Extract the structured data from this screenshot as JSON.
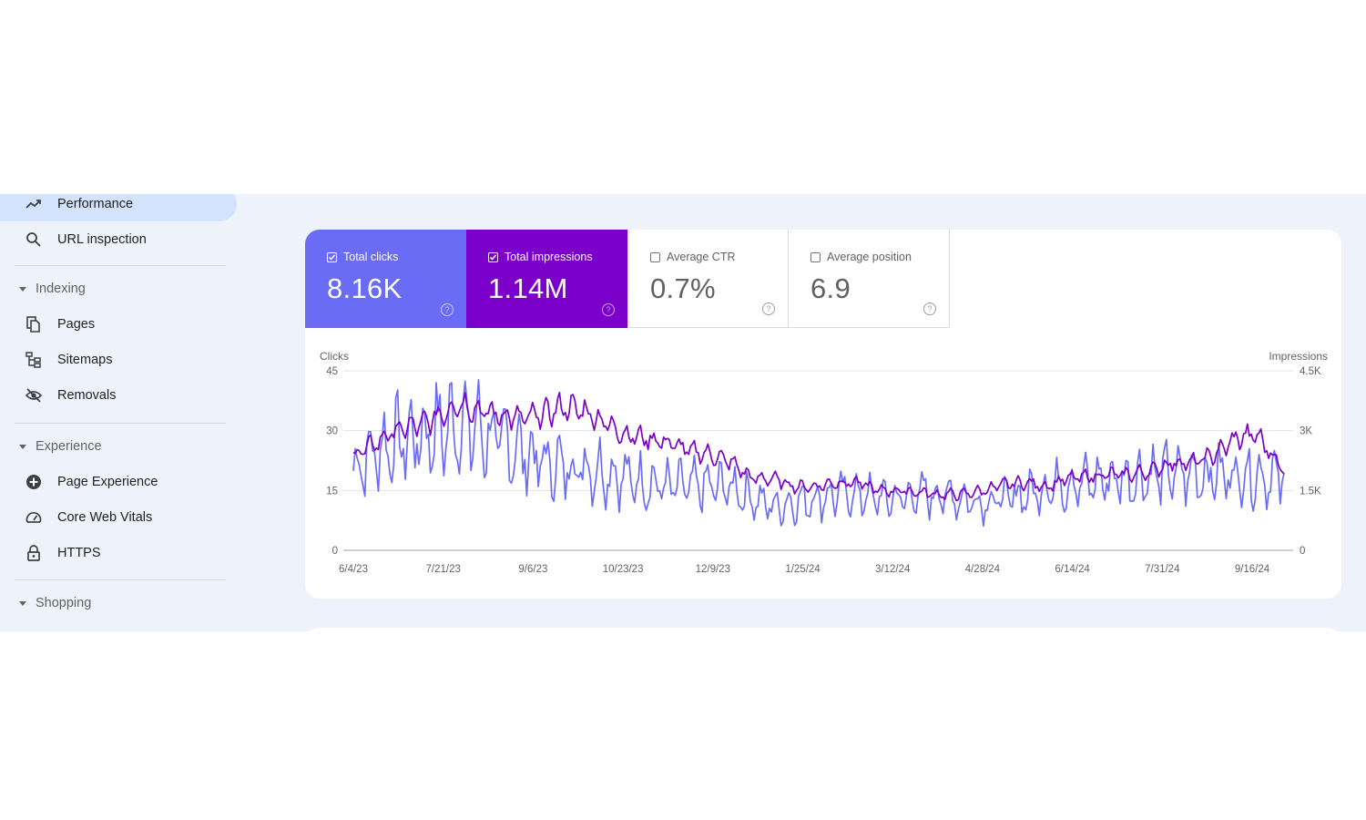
{
  "sidebar": {
    "items": [
      {
        "label": "Performance",
        "icon": "trending-up-icon",
        "active": true
      },
      {
        "label": "URL inspection",
        "icon": "search-icon"
      }
    ],
    "sections": [
      {
        "label": "Indexing",
        "items": [
          {
            "label": "Pages",
            "icon": "pages-icon"
          },
          {
            "label": "Sitemaps",
            "icon": "sitemap-icon"
          },
          {
            "label": "Removals",
            "icon": "eye-off-icon"
          }
        ]
      },
      {
        "label": "Experience",
        "items": [
          {
            "label": "Page Experience",
            "icon": "plus-circle-icon"
          },
          {
            "label": "Core Web Vitals",
            "icon": "gauge-icon"
          },
          {
            "label": "HTTPS",
            "icon": "lock-icon"
          }
        ]
      },
      {
        "label": "Shopping",
        "items": []
      }
    ]
  },
  "metrics": [
    {
      "label": "Total clicks",
      "value": "8.16K",
      "checked": true,
      "color": "#6a6cf6"
    },
    {
      "label": "Total impressions",
      "value": "1.14M",
      "checked": true,
      "color": "#7b00c9"
    },
    {
      "label": "Average CTR",
      "value": "0.7%",
      "checked": false
    },
    {
      "label": "Average position",
      "value": "6.9",
      "checked": false
    }
  ],
  "chart_data": {
    "type": "line",
    "y_left_label": "Clicks",
    "y_right_label": "Impressions",
    "y_left_ticks": [
      "45",
      "30",
      "15",
      "0"
    ],
    "y_right_ticks": [
      "4.5K",
      "3K",
      "1.5K",
      "0"
    ],
    "y_left_range": [
      0,
      45
    ],
    "y_right_range": [
      0,
      4500
    ],
    "x_ticks": [
      "6/4/23",
      "7/21/23",
      "9/6/23",
      "10/23/23",
      "12/9/23",
      "1/25/24",
      "3/12/24",
      "4/28/24",
      "6/14/24",
      "7/31/24",
      "9/16/24"
    ],
    "x_start": "2023-06-04",
    "x_end": "2024-09-29",
    "grid": true,
    "series": [
      {
        "name": "Total clicks",
        "axis": "left",
        "color": "#6a6cf6",
        "anchors": [
          [
            0,
            20
          ],
          [
            8,
            24
          ],
          [
            20,
            27
          ],
          [
            35,
            29
          ],
          [
            50,
            32
          ],
          [
            60,
            30
          ],
          [
            70,
            27
          ],
          [
            80,
            25
          ],
          [
            90,
            22
          ],
          [
            100,
            21
          ],
          [
            110,
            21
          ],
          [
            120,
            20
          ],
          [
            130,
            18
          ],
          [
            140,
            17
          ],
          [
            150,
            16
          ],
          [
            160,
            16
          ],
          [
            170,
            16
          ],
          [
            180,
            16
          ],
          [
            190,
            13
          ],
          [
            200,
            11
          ],
          [
            210,
            12
          ],
          [
            220,
            13
          ],
          [
            230,
            14
          ],
          [
            240,
            14
          ],
          [
            250,
            13
          ],
          [
            260,
            13
          ],
          [
            270,
            14
          ],
          [
            280,
            14
          ],
          [
            290,
            13
          ],
          [
            300,
            12
          ],
          [
            310,
            13
          ],
          [
            320,
            14
          ],
          [
            330,
            16
          ],
          [
            340,
            17
          ],
          [
            350,
            17
          ],
          [
            360,
            18
          ],
          [
            370,
            18
          ],
          [
            380,
            19
          ],
          [
            390,
            19
          ],
          [
            400,
            19
          ],
          [
            410,
            19
          ],
          [
            420,
            19
          ],
          [
            430,
            19
          ],
          [
            443,
            18
          ]
        ]
      },
      {
        "name": "Total impressions",
        "axis": "right",
        "color": "#7b00c9",
        "anchors": [
          [
            0,
            2400
          ],
          [
            8,
            2600
          ],
          [
            20,
            3000
          ],
          [
            35,
            3200
          ],
          [
            50,
            3700
          ],
          [
            60,
            3500
          ],
          [
            70,
            3400
          ],
          [
            80,
            3300
          ],
          [
            90,
            3400
          ],
          [
            100,
            3600
          ],
          [
            110,
            3500
          ],
          [
            120,
            3200
          ],
          [
            130,
            2900
          ],
          [
            140,
            2800
          ],
          [
            150,
            2700
          ],
          [
            160,
            2500
          ],
          [
            170,
            2400
          ],
          [
            180,
            2200
          ],
          [
            190,
            1800
          ],
          [
            200,
            1800
          ],
          [
            210,
            1600
          ],
          [
            220,
            1600
          ],
          [
            230,
            1700
          ],
          [
            240,
            1700
          ],
          [
            250,
            1500
          ],
          [
            260,
            1500
          ],
          [
            270,
            1450
          ],
          [
            280,
            1400
          ],
          [
            290,
            1400
          ],
          [
            300,
            1500
          ],
          [
            310,
            1650
          ],
          [
            320,
            1700
          ],
          [
            330,
            1600
          ],
          [
            340,
            1800
          ],
          [
            350,
            1850
          ],
          [
            360,
            1900
          ],
          [
            370,
            1900
          ],
          [
            380,
            2000
          ],
          [
            390,
            2200
          ],
          [
            400,
            2200
          ],
          [
            410,
            2400
          ],
          [
            420,
            2800
          ],
          [
            430,
            2900
          ],
          [
            443,
            2000
          ]
        ]
      }
    ]
  }
}
